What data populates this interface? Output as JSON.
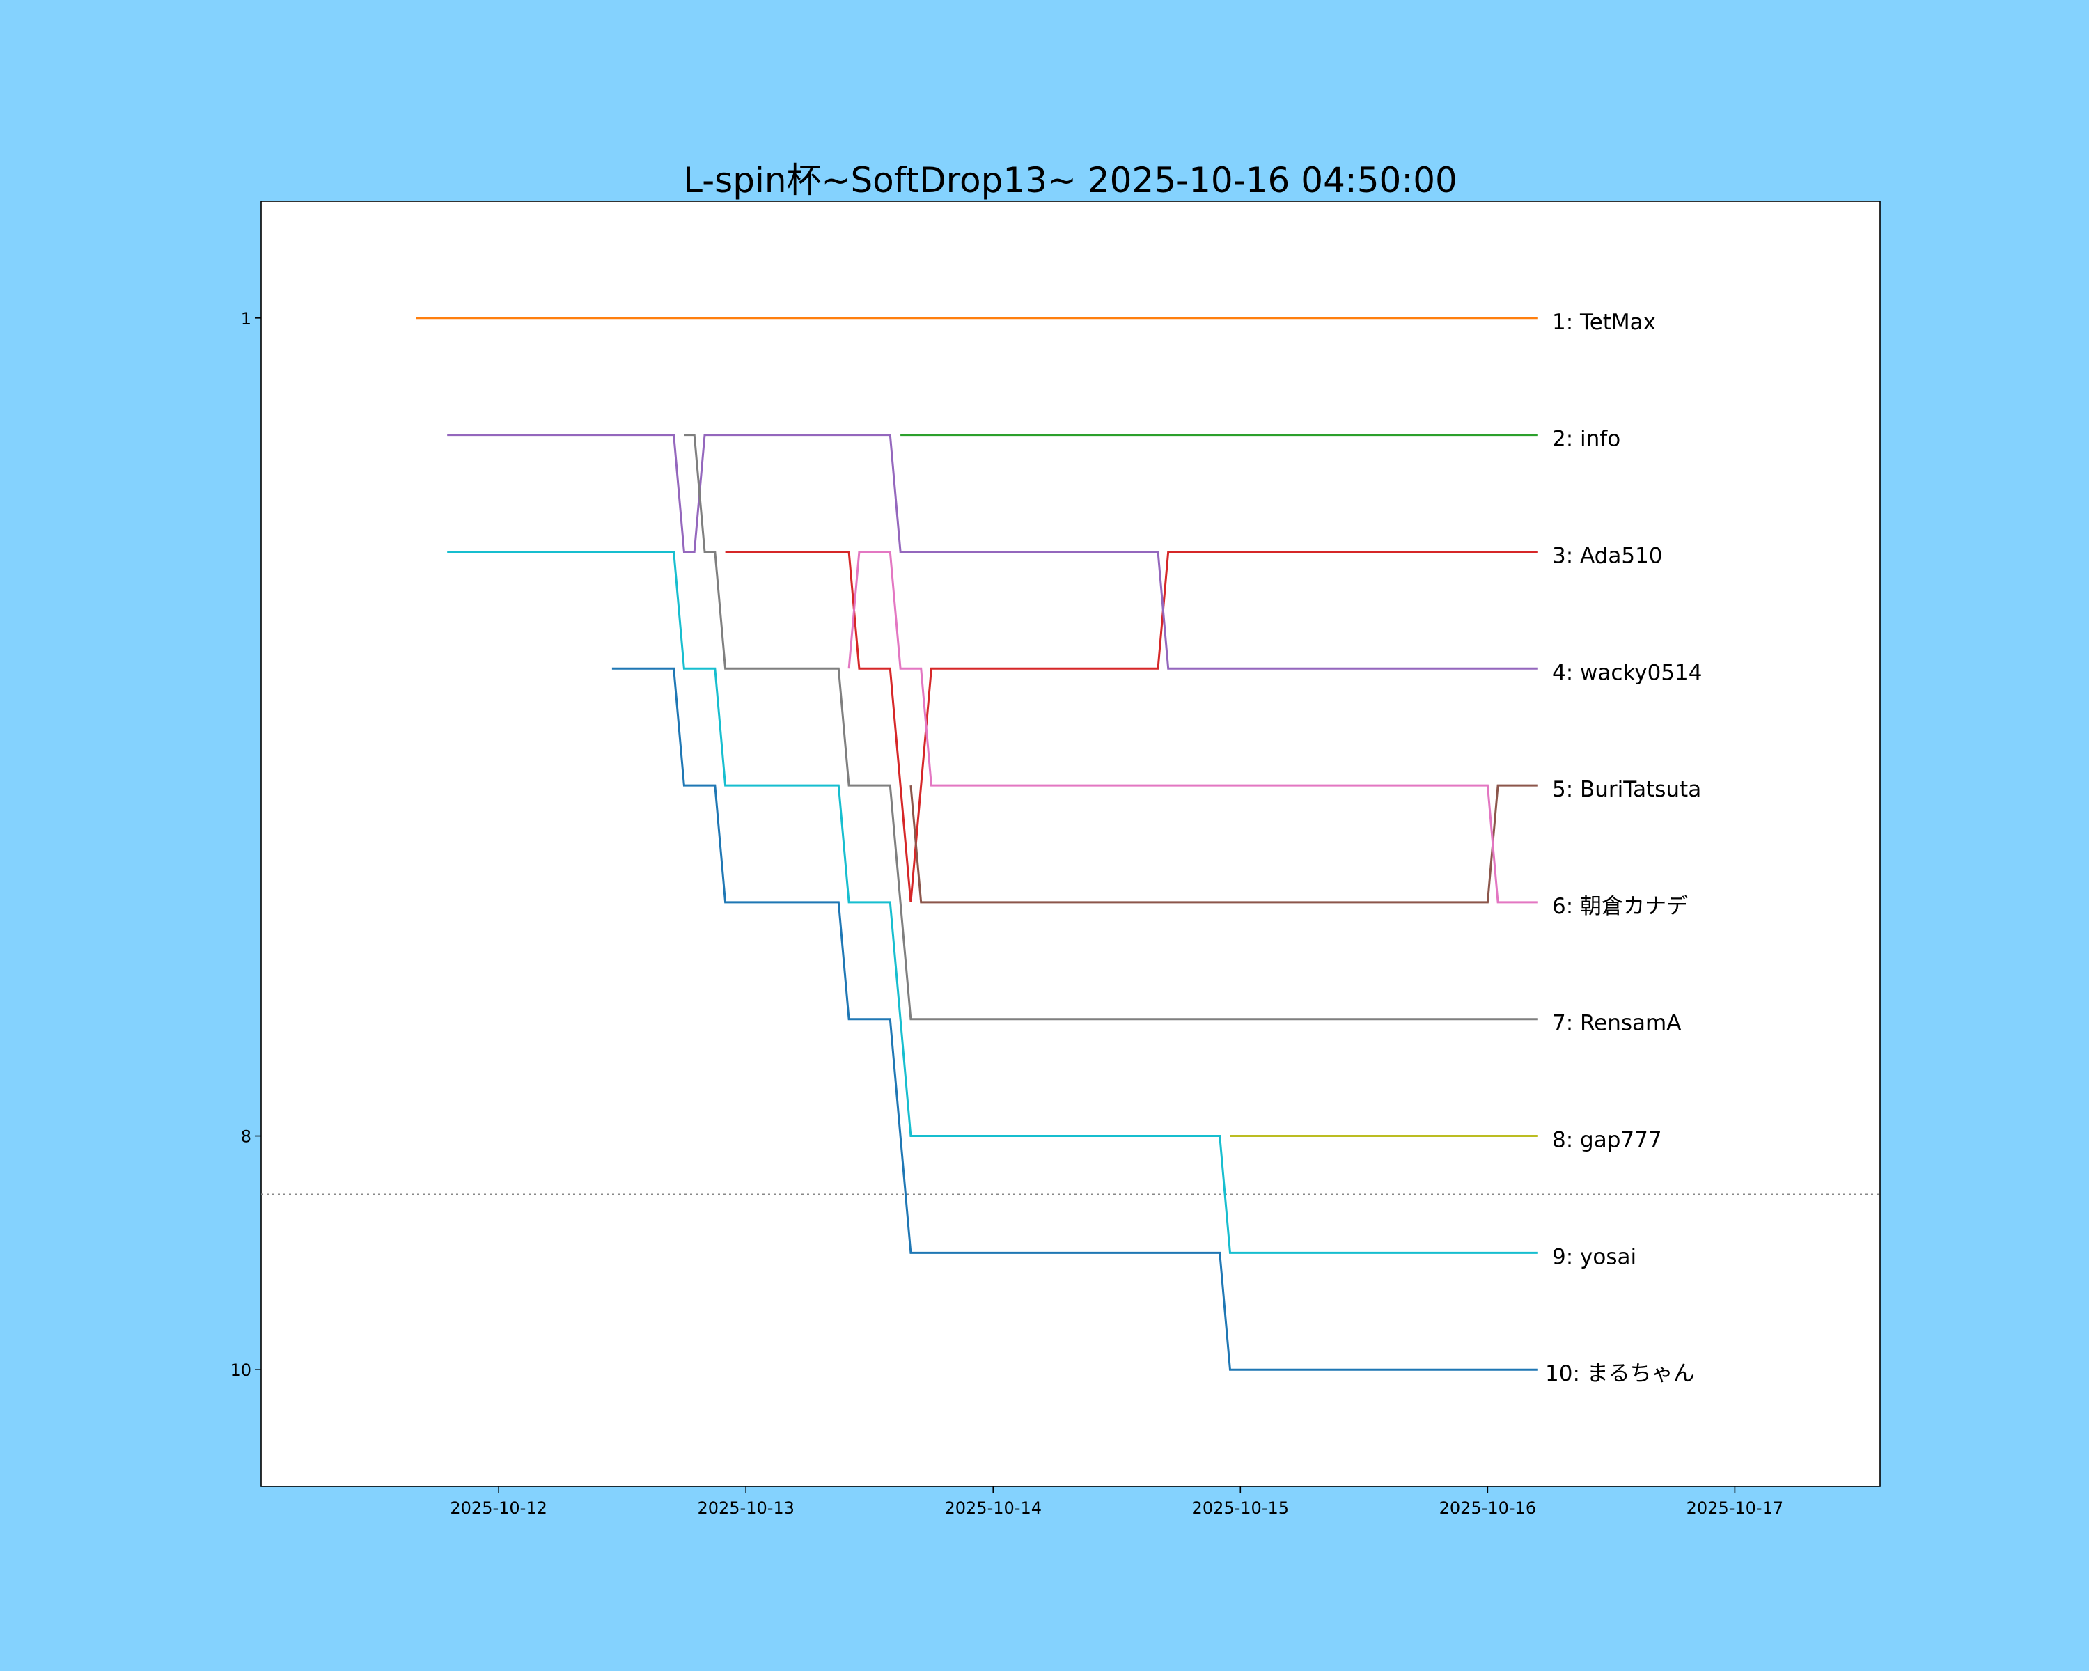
{
  "chart_data": {
    "type": "line",
    "title": "L-spin杯~SoftDrop13~ 2025-10-16 04:50:00",
    "xlabel": "",
    "ylabel": "",
    "x_origin": "2025-10-12T00:00",
    "x_unit": "hours since 2025-10-12 00:00",
    "xlim": [
      -23.06,
      134.1
    ],
    "ylim": [
      11,
      0
    ],
    "x_ticks": [
      {
        "h": 0,
        "label": "2025-10-12"
      },
      {
        "h": 24,
        "label": "2025-10-13"
      },
      {
        "h": 48,
        "label": "2025-10-14"
      },
      {
        "h": 72,
        "label": "2025-10-15"
      },
      {
        "h": 96,
        "label": "2025-10-16"
      },
      {
        "h": 120,
        "label": "2025-10-17"
      }
    ],
    "y_ticks": [
      {
        "v": 1,
        "label": "1"
      },
      {
        "v": 8,
        "label": "8"
      },
      {
        "v": 10,
        "label": "10"
      }
    ],
    "cutoff_line": {
      "rank": 8.5,
      "style": "dotted",
      "color": "#888888"
    },
    "background": "#84d2fe",
    "series": [
      {
        "name": "TetMax",
        "label": "1: TetMax",
        "color": "#ff7f0e",
        "points": [
          [
            -8,
            1
          ],
          [
            100.83,
            1
          ]
        ]
      },
      {
        "name": "info",
        "label": "2: info",
        "color": "#2ca02c",
        "points": [
          [
            39,
            2
          ],
          [
            100.83,
            2
          ]
        ]
      },
      {
        "name": "Ada510",
        "label": "3: Ada510",
        "color": "#d62728",
        "points": [
          [
            22,
            3
          ],
          [
            34,
            3
          ],
          [
            35,
            4
          ],
          [
            38,
            4
          ],
          [
            40,
            6
          ],
          [
            42,
            4
          ],
          [
            64,
            4
          ],
          [
            65,
            3
          ],
          [
            100.83,
            3
          ]
        ]
      },
      {
        "name": "wacky0514",
        "label": "4: wacky0514",
        "color": "#9467bd",
        "points": [
          [
            -5,
            2
          ],
          [
            17,
            2
          ],
          [
            18,
            3
          ],
          [
            19,
            3
          ],
          [
            20,
            2
          ],
          [
            38,
            2
          ],
          [
            39,
            3
          ],
          [
            64,
            3
          ],
          [
            65,
            4
          ],
          [
            100.83,
            4
          ]
        ]
      },
      {
        "name": "BuriTatsuta",
        "label": "5: BuriTatsuta",
        "color": "#8c564b",
        "points": [
          [
            40,
            5
          ],
          [
            41,
            6
          ],
          [
            96,
            6
          ],
          [
            97,
            5
          ],
          [
            100.83,
            5
          ]
        ]
      },
      {
        "name": "朝倉カナデ",
        "label": "6: 朝倉カナデ",
        "color": "#e377c2",
        "points": [
          [
            34,
            4
          ],
          [
            35,
            3
          ],
          [
            38,
            3
          ],
          [
            39,
            4
          ],
          [
            41,
            4
          ],
          [
            42,
            5
          ],
          [
            96,
            5
          ],
          [
            97,
            6
          ],
          [
            100.83,
            6
          ]
        ]
      },
      {
        "name": "RensamA",
        "label": "7: RensamA",
        "color": "#7f7f7f",
        "points": [
          [
            18,
            2
          ],
          [
            19,
            2
          ],
          [
            20,
            3
          ],
          [
            21,
            3
          ],
          [
            22,
            4
          ],
          [
            33,
            4
          ],
          [
            34,
            5
          ],
          [
            38,
            5
          ],
          [
            40,
            7
          ],
          [
            100.83,
            7
          ]
        ]
      },
      {
        "name": "gap777",
        "label": "8: gap777",
        "color": "#bcbd22",
        "points": [
          [
            71,
            8
          ],
          [
            100.83,
            8
          ]
        ]
      },
      {
        "name": "yosai",
        "label": "9: yosai",
        "color": "#17becf",
        "points": [
          [
            -5,
            3
          ],
          [
            17,
            3
          ],
          [
            18,
            4
          ],
          [
            21,
            4
          ],
          [
            22,
            5
          ],
          [
            33,
            5
          ],
          [
            34,
            6
          ],
          [
            38,
            6
          ],
          [
            40,
            8
          ],
          [
            70,
            8
          ],
          [
            71,
            9
          ],
          [
            100.83,
            9
          ]
        ]
      },
      {
        "name": "まるちゃん",
        "label": "10: まるちゃん",
        "color": "#1f77b4",
        "points": [
          [
            11,
            4
          ],
          [
            17,
            4
          ],
          [
            18,
            5
          ],
          [
            21,
            5
          ],
          [
            22,
            6
          ],
          [
            33,
            6
          ],
          [
            34,
            7
          ],
          [
            38,
            7
          ],
          [
            40,
            9
          ],
          [
            70,
            9
          ],
          [
            71,
            10
          ],
          [
            100.83,
            10
          ]
        ]
      }
    ]
  }
}
